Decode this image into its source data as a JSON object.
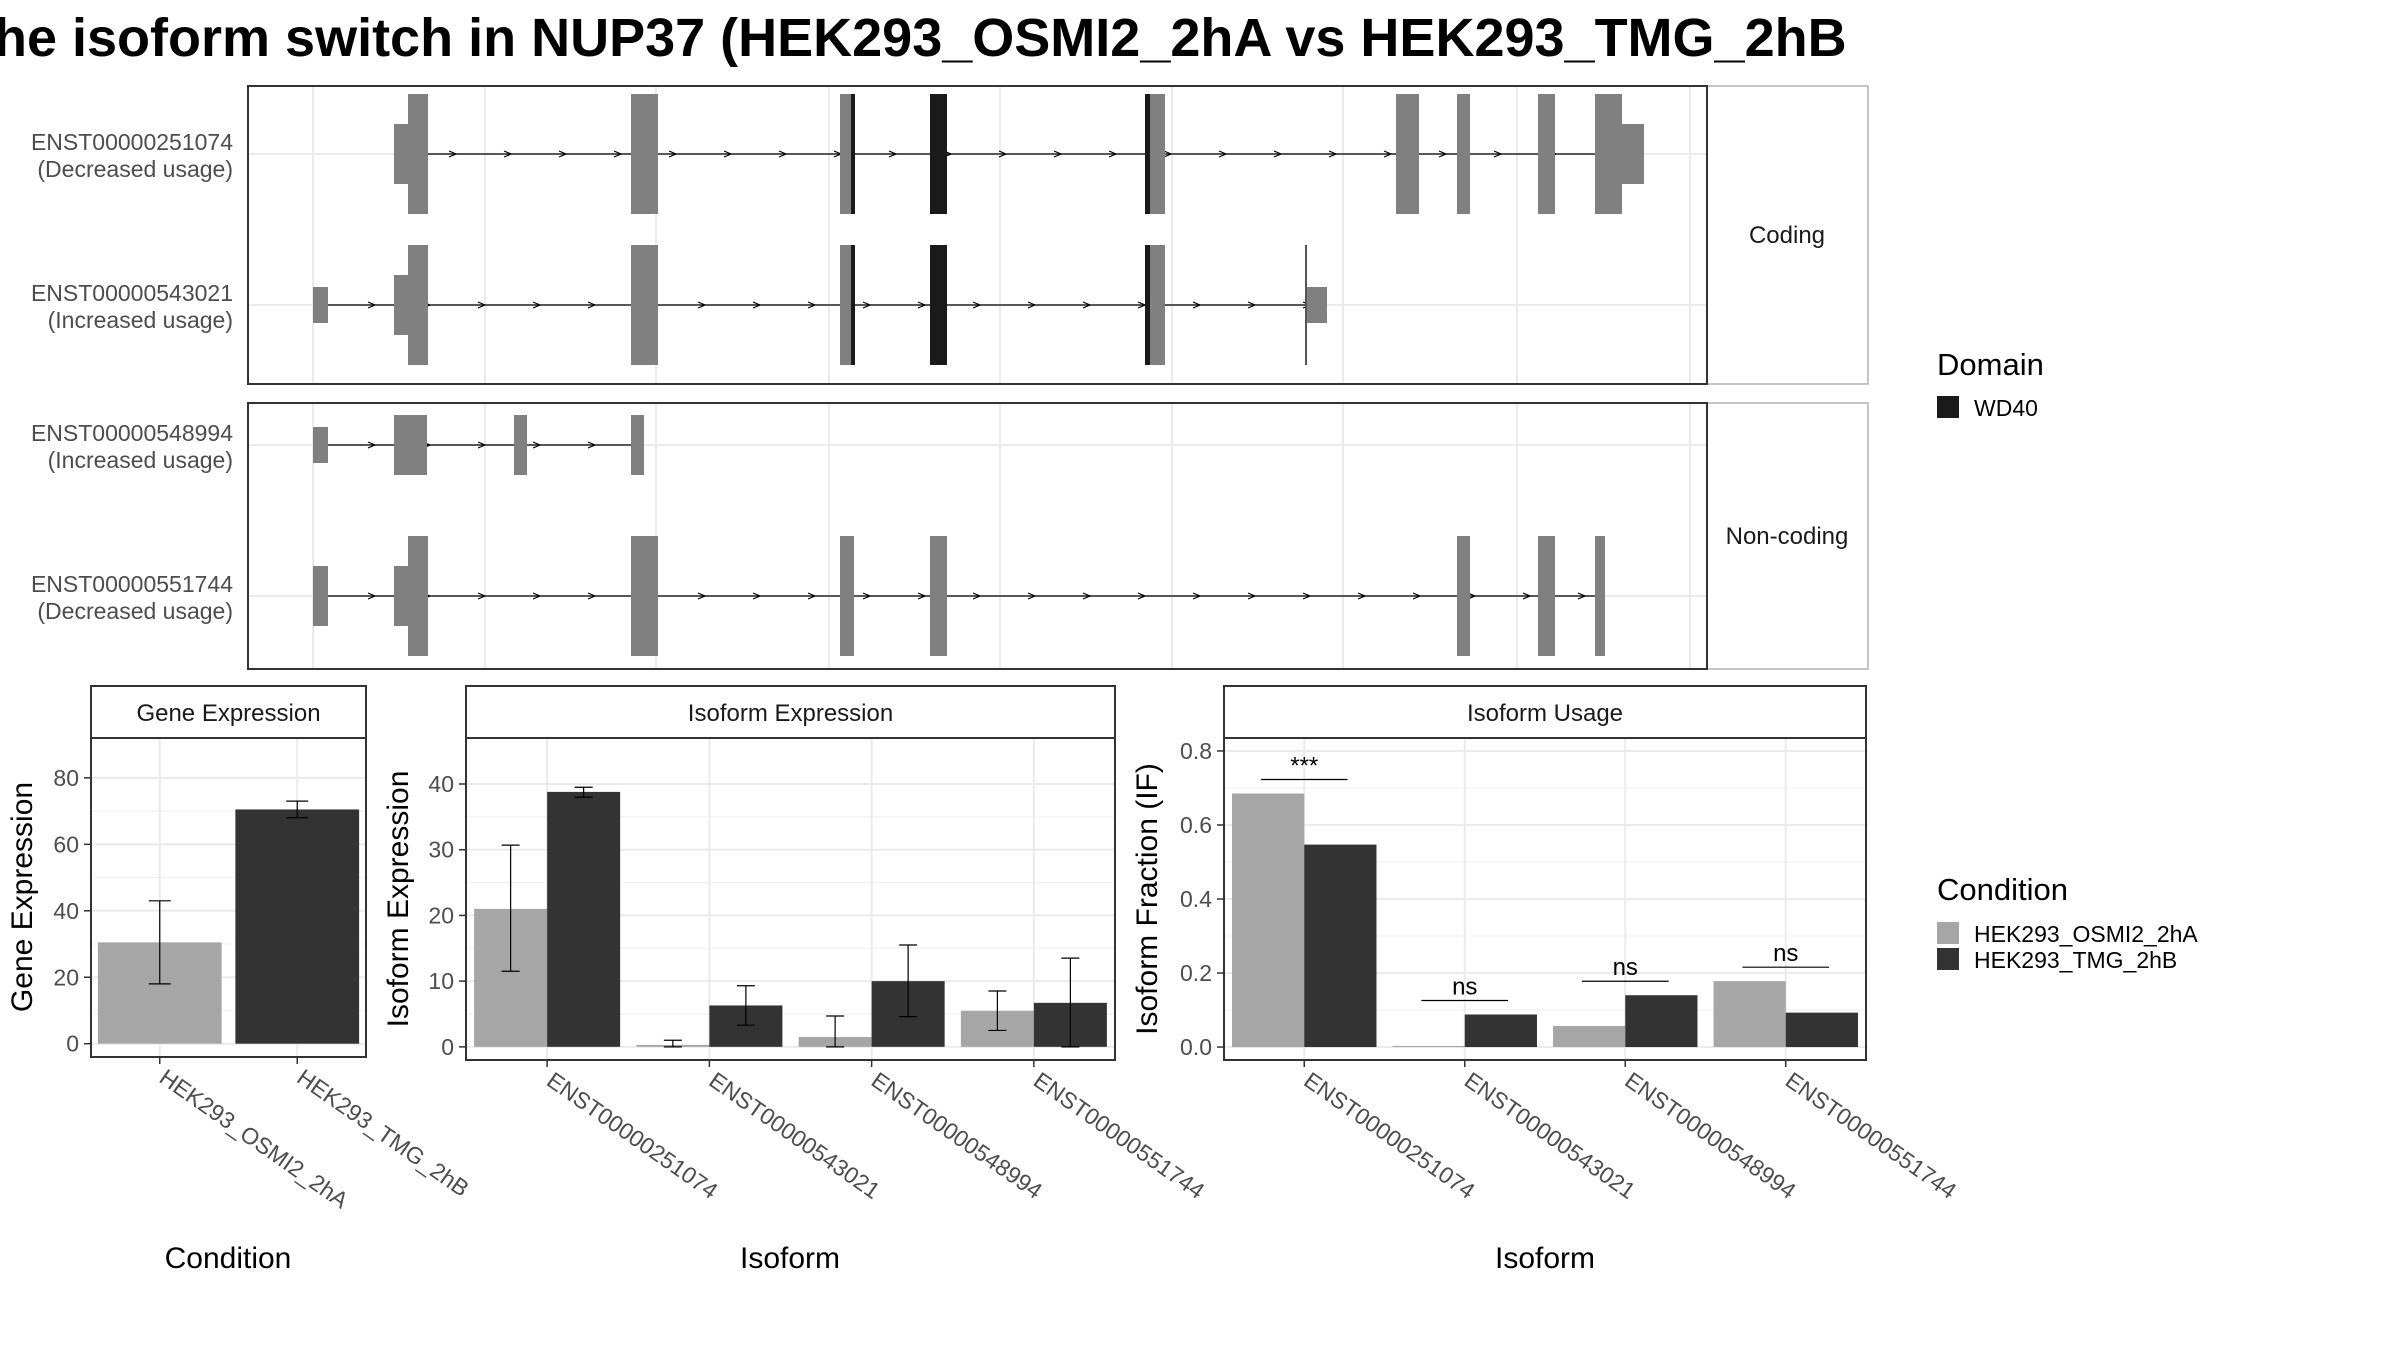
{
  "title": "he isoform switch in NUP37 (HEK293_OSMI2_2hA vs HEK293_TMG_2hB",
  "structure": {
    "transcripts": [
      {
        "id": "ENST00000251074",
        "note": "(Decreased usage)",
        "group": "Coding"
      },
      {
        "id": "ENST00000543021",
        "note": "(Increased usage)",
        "group": "Coding"
      },
      {
        "id": "ENST00000548994",
        "note": "(Increased usage)",
        "group": "Non-coding"
      },
      {
        "id": "ENST00000551744",
        "note": "(Decreased usage)",
        "group": "Non-coding"
      }
    ],
    "groups": [
      "Coding",
      "Non-coding"
    ],
    "domain_legend": {
      "title": "Domain",
      "items": [
        {
          "label": "WD40",
          "color": "#1a1a1a"
        }
      ]
    },
    "exon_color": "#808080",
    "domain_color": "#1a1a1a"
  },
  "condition_legend": {
    "title": "Condition",
    "items": [
      {
        "label": "HEK293_OSMI2_2hA",
        "color": "#a6a6a6"
      },
      {
        "label": "HEK293_TMG_2hB",
        "color": "#333333"
      }
    ]
  },
  "chart_data": [
    {
      "type": "bar",
      "panel": "Gene Expression",
      "xlabel": "Condition",
      "ylabel": "Gene Expression",
      "categories": [
        "HEK293_OSMI2_2hA",
        "HEK293_TMG_2hB"
      ],
      "values": [
        30.5,
        70.5
      ],
      "err_low": [
        18,
        68
      ],
      "err_high": [
        43,
        73
      ],
      "yticks": [
        0,
        20,
        40,
        60,
        80
      ],
      "ylim": [
        -4,
        92
      ],
      "grid": true
    },
    {
      "type": "bar",
      "panel": "Isoform Expression",
      "xlabel": "Isoform",
      "ylabel": "Isoform Expression",
      "categories": [
        "ENST00000251074",
        "ENST00000543021",
        "ENST00000548994",
        "ENST00000551744"
      ],
      "series": [
        {
          "name": "HEK293_OSMI2_2hA",
          "values": [
            21,
            0.3,
            1.5,
            5.5
          ],
          "err_low": [
            11.5,
            0,
            0,
            2.5
          ],
          "err_high": [
            30.7,
            1,
            4.7,
            8.5
          ]
        },
        {
          "name": "HEK293_TMG_2hB",
          "values": [
            38.8,
            6.3,
            10,
            6.7
          ],
          "err_low": [
            38,
            3.3,
            4.6,
            0
          ],
          "err_high": [
            39.5,
            9.3,
            15.5,
            13.5
          ]
        }
      ],
      "yticks": [
        0,
        10,
        20,
        30,
        40
      ],
      "ylim": [
        -2,
        47
      ],
      "grid": true
    },
    {
      "type": "bar",
      "panel": "Isoform Usage",
      "xlabel": "Isoform",
      "ylabel": "Isoform Fraction (IF)",
      "categories": [
        "ENST00000251074",
        "ENST00000543021",
        "ENST00000548994",
        "ENST00000551744"
      ],
      "series": [
        {
          "name": "HEK293_OSMI2_2hA",
          "values": [
            0.685,
            0.003,
            0.057,
            0.178
          ]
        },
        {
          "name": "HEK293_TMG_2hB",
          "values": [
            0.547,
            0.088,
            0.14,
            0.093
          ]
        }
      ],
      "significance": [
        "***",
        "ns",
        "ns",
        "ns"
      ],
      "yticks": [
        0.0,
        0.2,
        0.4,
        0.6,
        0.8
      ],
      "ytick_labels": [
        "0.0",
        "0.2",
        "0.4",
        "0.6",
        "0.8"
      ],
      "ylim": [
        -0.035,
        0.835
      ],
      "grid": true
    }
  ]
}
